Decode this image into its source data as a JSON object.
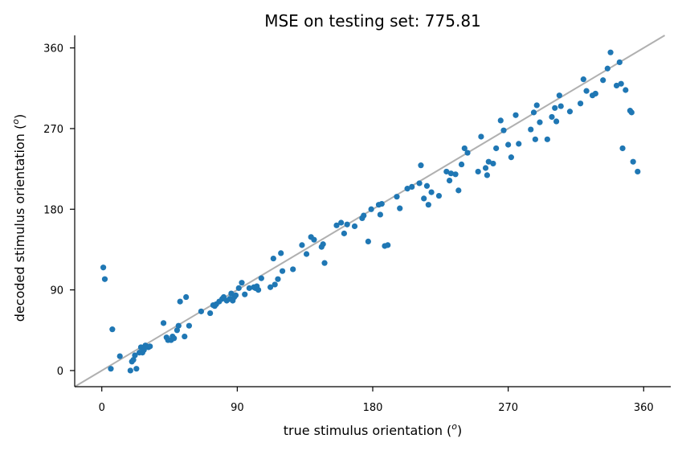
{
  "chart_data": {
    "type": "scatter",
    "title": "MSE on testing set: 775.81",
    "xlabel": "true stimulus orientation (",
    "ylabel": "decoded stimulus orientation (",
    "label_unit_superscript": "o",
    "label_suffix": ")",
    "xlim": [
      -18,
      378
    ],
    "ylim": [
      -18,
      374
    ],
    "xticks": [
      0,
      90,
      180,
      270,
      360
    ],
    "yticks": [
      0,
      90,
      180,
      270,
      360
    ],
    "xtick_labels": [
      "0",
      "90",
      "180",
      "270",
      "360"
    ],
    "ytick_labels": [
      "0",
      "90",
      "180",
      "270",
      "360"
    ],
    "identity_line": true,
    "grid": false,
    "point_color": "#1f77b4",
    "line_color": "#b0b0b0",
    "points": [
      [
        1,
        115
      ],
      [
        2,
        102
      ],
      [
        6,
        2
      ],
      [
        7,
        46
      ],
      [
        12,
        16
      ],
      [
        19,
        0
      ],
      [
        20,
        10
      ],
      [
        21,
        12
      ],
      [
        22,
        17
      ],
      [
        23,
        2
      ],
      [
        25,
        20
      ],
      [
        26,
        26
      ],
      [
        27,
        20
      ],
      [
        28,
        23
      ],
      [
        29,
        28
      ],
      [
        31,
        26
      ],
      [
        32,
        27
      ],
      [
        41,
        53
      ],
      [
        43,
        37
      ],
      [
        44,
        34
      ],
      [
        46,
        34
      ],
      [
        47,
        38
      ],
      [
        48,
        36
      ],
      [
        50,
        45
      ],
      [
        51,
        50
      ],
      [
        52,
        77
      ],
      [
        55,
        38
      ],
      [
        56,
        82
      ],
      [
        58,
        50
      ],
      [
        66,
        66
      ],
      [
        72,
        64
      ],
      [
        74,
        73
      ],
      [
        75,
        72
      ],
      [
        76,
        74
      ],
      [
        78,
        77
      ],
      [
        80,
        80
      ],
      [
        81,
        82
      ],
      [
        83,
        78
      ],
      [
        85,
        80
      ],
      [
        86,
        86
      ],
      [
        87,
        78
      ],
      [
        88,
        82
      ],
      [
        89,
        84
      ],
      [
        91,
        92
      ],
      [
        93,
        98
      ],
      [
        95,
        85
      ],
      [
        98,
        92
      ],
      [
        101,
        93
      ],
      [
        102,
        92
      ],
      [
        103,
        94
      ],
      [
        104,
        90
      ],
      [
        106,
        103
      ],
      [
        112,
        93
      ],
      [
        115,
        96
      ],
      [
        117,
        102
      ],
      [
        120,
        111
      ],
      [
        119,
        131
      ],
      [
        114,
        125
      ],
      [
        127,
        113
      ],
      [
        133,
        140
      ],
      [
        136,
        130
      ],
      [
        139,
        149
      ],
      [
        141,
        146
      ],
      [
        146,
        138
      ],
      [
        147,
        141
      ],
      [
        148,
        120
      ],
      [
        156,
        162
      ],
      [
        159,
        165
      ],
      [
        161,
        153
      ],
      [
        163,
        163
      ],
      [
        168,
        161
      ],
      [
        173,
        170
      ],
      [
        174,
        173
      ],
      [
        177,
        144
      ],
      [
        179,
        180
      ],
      [
        184,
        185
      ],
      [
        185,
        174
      ],
      [
        186,
        186
      ],
      [
        188,
        139
      ],
      [
        190,
        140
      ],
      [
        196,
        194
      ],
      [
        198,
        181
      ],
      [
        203,
        203
      ],
      [
        206,
        205
      ],
      [
        211,
        209
      ],
      [
        212,
        229
      ],
      [
        214,
        192
      ],
      [
        216,
        206
      ],
      [
        217,
        185
      ],
      [
        219,
        199
      ],
      [
        224,
        195
      ],
      [
        229,
        222
      ],
      [
        231,
        212
      ],
      [
        232,
        220
      ],
      [
        235,
        219
      ],
      [
        237,
        201
      ],
      [
        239,
        230
      ],
      [
        241,
        248
      ],
      [
        243,
        243
      ],
      [
        250,
        222
      ],
      [
        252,
        261
      ],
      [
        255,
        226
      ],
      [
        256,
        218
      ],
      [
        257,
        233
      ],
      [
        260,
        231
      ],
      [
        262,
        248
      ],
      [
        265,
        279
      ],
      [
        267,
        268
      ],
      [
        270,
        252
      ],
      [
        272,
        238
      ],
      [
        275,
        285
      ],
      [
        277,
        253
      ],
      [
        285,
        269
      ],
      [
        287,
        288
      ],
      [
        288,
        258
      ],
      [
        289,
        296
      ],
      [
        291,
        277
      ],
      [
        296,
        258
      ],
      [
        299,
        283
      ],
      [
        301,
        293
      ],
      [
        302,
        278
      ],
      [
        304,
        307
      ],
      [
        305,
        295
      ],
      [
        311,
        289
      ],
      [
        318,
        298
      ],
      [
        320,
        325
      ],
      [
        322,
        312
      ],
      [
        326,
        307
      ],
      [
        328,
        309
      ],
      [
        333,
        324
      ],
      [
        336,
        337
      ],
      [
        338,
        355
      ],
      [
        342,
        318
      ],
      [
        344,
        344
      ],
      [
        345,
        320
      ],
      [
        346,
        248
      ],
      [
        348,
        313
      ],
      [
        351,
        290
      ],
      [
        352,
        288
      ],
      [
        353,
        233
      ],
      [
        356,
        222
      ]
    ]
  }
}
